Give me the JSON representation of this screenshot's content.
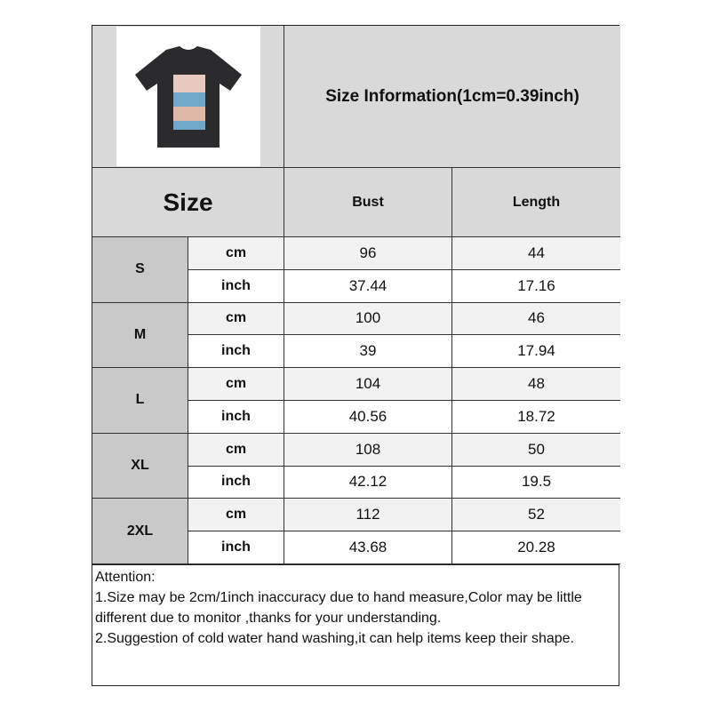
{
  "header": {
    "title": "Size Information(1cm=0.39inch)",
    "image": "black-tshirt-product-photo"
  },
  "columns": {
    "size": "Size",
    "bust": "Bust",
    "length": "Length"
  },
  "rows": [
    {
      "size": "S",
      "cm": {
        "unit": "cm",
        "bust": "96",
        "length": "44"
      },
      "inch": {
        "unit": "inch",
        "bust": "37.44",
        "length": "17.16"
      }
    },
    {
      "size": "M",
      "cm": {
        "unit": "cm",
        "bust": "100",
        "length": "46"
      },
      "inch": {
        "unit": "inch",
        "bust": "39",
        "length": "17.94"
      }
    },
    {
      "size": "L",
      "cm": {
        "unit": "cm",
        "bust": "104",
        "length": "48"
      },
      "inch": {
        "unit": "inch",
        "bust": "40.56",
        "length": "18.72"
      }
    },
    {
      "size": "XL",
      "cm": {
        "unit": "cm",
        "bust": "108",
        "length": "50"
      },
      "inch": {
        "unit": "inch",
        "bust": "42.12",
        "length": "19.5"
      }
    },
    {
      "size": "2XL",
      "cm": {
        "unit": "cm",
        "bust": "112",
        "length": "52"
      },
      "inch": {
        "unit": "inch",
        "bust": "43.68",
        "length": "20.28"
      }
    }
  ],
  "attention": {
    "title": "Attention:",
    "lines": [
      "1.Size may be 2cm/1inch inaccuracy due to hand measure,Color may be little different due to monitor ,thanks for your understanding.",
      "2.Suggestion of cold water hand washing,it can help items keep their shape."
    ]
  }
}
